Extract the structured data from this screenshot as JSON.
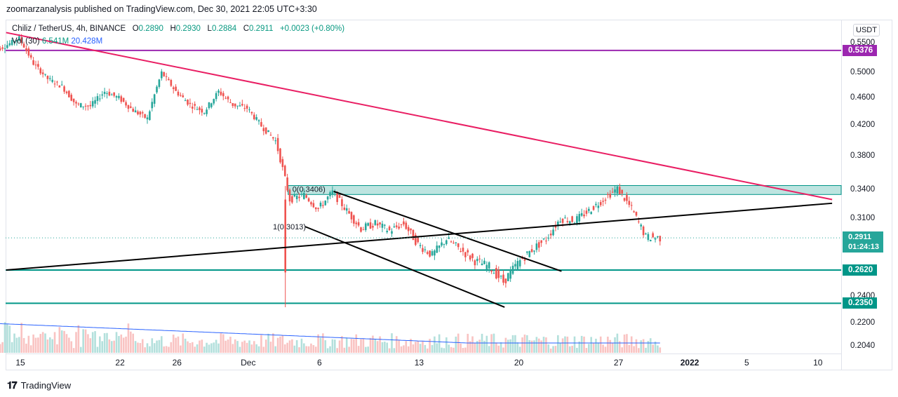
{
  "publisher_line": "zoomarzanalysis published on TradingView.com, Dec 30, 2021 22:05 UTC+3:30",
  "legend": {
    "symbol": "Chiliz / TetherUS, 4h, BINANCE",
    "open_label": "O",
    "open": "0.2890",
    "high_label": "H",
    "high": "0.2930",
    "low_label": "L",
    "low": "0.2884",
    "close_label": "C",
    "close": "0.2911",
    "change": "+0.0023 (+0.80%)",
    "volume_label": "Vol (30)",
    "volume_value": "6.541M",
    "volume_ma": "20.428M"
  },
  "currency_badge": "USDT",
  "footer": {
    "brand": "TradingView"
  },
  "colors": {
    "bull": "#26a69a",
    "bear": "#ef5350",
    "resistance_line": "#9c27b0",
    "trendline_down": "#e91e63",
    "support_line": "#009688",
    "zone_fill": "#b2dfdb",
    "volume_ma_line": "#2962ff"
  },
  "chart_data": {
    "type": "candlestick",
    "symbol": "CHZUSDT",
    "timeframe": "4h",
    "exchange": "BINANCE",
    "y_scale": "log",
    "ylim": [
      0.2,
      0.57
    ],
    "y_ticks": [
      "0.5500",
      "0.5000",
      "0.4600",
      "0.4200",
      "0.3800",
      "0.3400",
      "0.3100",
      "0.2400",
      "0.2200",
      "0.2040"
    ],
    "x_ticks": [
      "15",
      "22",
      "26",
      "Dec",
      "6",
      "13",
      "20",
      "27",
      "2022",
      "5",
      "10"
    ],
    "price_labels": [
      {
        "text": "0.5376",
        "price": 0.5376,
        "color": "#9c27b0"
      },
      {
        "text": "0.2620",
        "price": 0.262,
        "color": "#009688"
      },
      {
        "text": "0.2350",
        "price": 0.235,
        "color": "#009688"
      }
    ],
    "current_price": {
      "text": "0.2911",
      "countdown": "01:24:13",
      "price": 0.2911
    },
    "horizontal_lines": [
      {
        "name": "resistance",
        "price": 0.5376,
        "color": "#9c27b0"
      },
      {
        "name": "support-1",
        "price": 0.262,
        "color": "#009688"
      },
      {
        "name": "support-2",
        "price": 0.235,
        "color": "#009688"
      }
    ],
    "zone": {
      "top": 0.3455,
      "bottom": 0.3355,
      "label_top": "0(0.3406)",
      "label_bottom": "1(0.3013)",
      "level_0": 0.3406,
      "level_1": 0.3013
    },
    "trendlines": [
      {
        "name": "descending-red",
        "from": [
          "Nov 14",
          0.57
        ],
        "to": [
          "Jan 11",
          0.33
        ],
        "color": "#e91e63"
      },
      {
        "name": "ascending-black",
        "from": [
          "Nov 14",
          0.262
        ],
        "to": [
          "Jan 11",
          0.326
        ],
        "color": "#000000"
      },
      {
        "name": "channel-upper",
        "from": [
          "Dec 7",
          0.339
        ],
        "to": [
          "Dec 23",
          0.261
        ],
        "color": "#000000"
      },
      {
        "name": "channel-lower",
        "from": [
          "Dec 5",
          0.302
        ],
        "to": [
          "Dec 19",
          0.232
        ],
        "color": "#000000"
      }
    ],
    "price_path": [
      [
        "Nov 13",
        0.535
      ],
      [
        "Nov 14",
        0.545
      ],
      [
        "Nov 15",
        0.56
      ],
      [
        "Nov 16",
        0.515
      ],
      [
        "Nov 17",
        0.49
      ],
      [
        "Nov 18",
        0.478
      ],
      [
        "Nov 19",
        0.45
      ],
      [
        "Nov 20",
        0.448
      ],
      [
        "Nov 21",
        0.47
      ],
      [
        "Nov 22",
        0.46
      ],
      [
        "Nov 23",
        0.442
      ],
      [
        "Nov 24",
        0.43
      ],
      [
        "Nov 25",
        0.5
      ],
      [
        "Nov 26",
        0.47
      ],
      [
        "Nov 27",
        0.45
      ],
      [
        "Nov 28",
        0.44
      ],
      [
        "Nov 29",
        0.47
      ],
      [
        "Nov 30",
        0.45
      ],
      [
        "Dec 1",
        0.445
      ],
      [
        "Dec 2",
        0.42
      ],
      [
        "Dec 3",
        0.4
      ],
      [
        "Dec 4",
        0.33
      ],
      [
        "Dec 5",
        0.335
      ],
      [
        "Dec 6",
        0.32
      ],
      [
        "Dec 7",
        0.338
      ],
      [
        "Dec 8",
        0.318
      ],
      [
        "Dec 9",
        0.3
      ],
      [
        "Dec 10",
        0.305
      ],
      [
        "Dec 11",
        0.298
      ],
      [
        "Dec 12",
        0.305
      ],
      [
        "Dec 13",
        0.285
      ],
      [
        "Dec 14",
        0.275
      ],
      [
        "Dec 15",
        0.29
      ],
      [
        "Dec 16",
        0.28
      ],
      [
        "Dec 17",
        0.27
      ],
      [
        "Dec 18",
        0.265
      ],
      [
        "Dec 19",
        0.252
      ],
      [
        "Dec 20",
        0.268
      ],
      [
        "Dec 21",
        0.28
      ],
      [
        "Dec 22",
        0.29
      ],
      [
        "Dec 23",
        0.31
      ],
      [
        "Dec 24",
        0.308
      ],
      [
        "Dec 25",
        0.318
      ],
      [
        "Dec 26",
        0.33
      ],
      [
        "Dec 27",
        0.342
      ],
      [
        "Dec 28",
        0.32
      ],
      [
        "Dec 29",
        0.292
      ],
      [
        "Dec 30",
        0.2911
      ]
    ],
    "notable_wicks": [
      {
        "date": "Dec 4",
        "high": 0.345,
        "low": 0.232
      }
    ]
  }
}
